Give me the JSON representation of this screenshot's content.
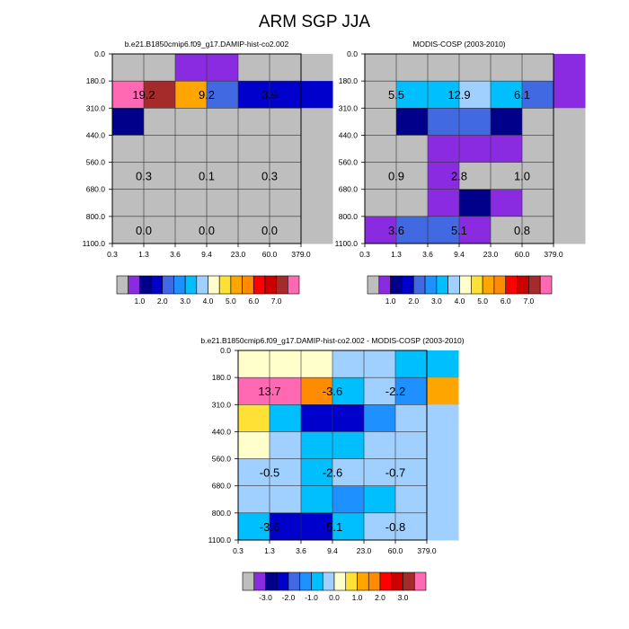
{
  "figure": {
    "title": "ARM SGP JJA"
  },
  "chart_data": [
    {
      "type": "heatmap",
      "title": "b.e21.B1850cmip6.f09_g17.DAMIP-hist-co2.002",
      "x_ticks": [
        "0.3",
        "1.3",
        "3.6",
        "9.4",
        "23.0",
        "60.0",
        "379.0"
      ],
      "y_ticks": [
        "0.0",
        "180.0",
        "310.0",
        "440.0",
        "560.0",
        "680.0",
        "800.0",
        "1100.0"
      ],
      "cell_colors": [
        [
          "#bebebe",
          "#bebebe",
          "#8a2be2",
          "#8a2be2",
          "#bebebe",
          "#bebebe",
          "#bebebe"
        ],
        [
          "#ff69b4",
          "#a52a2a",
          "#ffa500",
          "#4169e1",
          "#0000cd",
          "#0000cd",
          "#0000cd"
        ],
        [
          "#00008b",
          "#bebebe",
          "#bebebe",
          "#bebebe",
          "#bebebe",
          "#bebebe",
          "#bebebe"
        ],
        [
          "#bebebe",
          "#bebebe",
          "#bebebe",
          "#bebebe",
          "#bebebe",
          "#bebebe",
          "#bebebe"
        ],
        [
          "#bebebe",
          "#bebebe",
          "#bebebe",
          "#bebebe",
          "#bebebe",
          "#bebebe",
          "#bebebe"
        ],
        [
          "#bebebe",
          "#bebebe",
          "#bebebe",
          "#bebebe",
          "#bebebe",
          "#bebebe",
          "#bebebe"
        ],
        [
          "#bebebe",
          "#bebebe",
          "#bebebe",
          "#bebebe",
          "#bebebe",
          "#bebebe",
          "#bebebe"
        ]
      ],
      "annotations": [
        {
          "text": "19.2",
          "cx": 1,
          "cy": 1
        },
        {
          "text": "9.2",
          "cx": 3,
          "cy": 1
        },
        {
          "text": "3.9",
          "cx": 5,
          "cy": 1
        },
        {
          "text": "0.3",
          "cx": 1,
          "cy": 4
        },
        {
          "text": "0.1",
          "cx": 3,
          "cy": 4
        },
        {
          "text": "0.3",
          "cx": 5,
          "cy": 4
        },
        {
          "text": "0.0",
          "cx": 1,
          "cy": 6
        },
        {
          "text": "0.0",
          "cx": 3,
          "cy": 6
        },
        {
          "text": "0.0",
          "cx": 5,
          "cy": 6
        }
      ],
      "colorbar": {
        "colors": [
          "#bebebe",
          "#8a2be2",
          "#00008b",
          "#0000cd",
          "#4169e1",
          "#1e90ff",
          "#00bfff",
          "#a0d0ff",
          "#ffffcc",
          "#ffe135",
          "#ffa500",
          "#ff8c00",
          "#ff0000",
          "#cd0000",
          "#a52a2a",
          "#ff69b4"
        ],
        "labels": [
          "1.0",
          "2.0",
          "3.0",
          "4.0",
          "5.0",
          "6.0",
          "7.0"
        ],
        "label_start_boundary": 2,
        "label_step": 2
      }
    },
    {
      "type": "heatmap",
      "title": "MODIS-COSP (2003-2010)",
      "x_ticks": [
        "0.3",
        "1.3",
        "3.6",
        "9.4",
        "23.0",
        "60.0",
        "379.0"
      ],
      "y_ticks": [
        "0.0",
        "180.0",
        "310.0",
        "440.0",
        "560.0",
        "680.0",
        "800.0",
        "1100.0"
      ],
      "cell_colors": [
        [
          "#bebebe",
          "#bebebe",
          "#bebebe",
          "#bebebe",
          "#bebebe",
          "#bebebe",
          "#8a2be2"
        ],
        [
          "#bebebe",
          "#00bfff",
          "#00bfff",
          "#a0d0ff",
          "#00bfff",
          "#4169e1",
          "#8a2be2"
        ],
        [
          "#bebebe",
          "#00008b",
          "#4169e1",
          "#4169e1",
          "#00008b",
          "#bebebe",
          "#bebebe"
        ],
        [
          "#bebebe",
          "#bebebe",
          "#8a2be2",
          "#8a2be2",
          "#8a2be2",
          "#bebebe",
          "#bebebe"
        ],
        [
          "#bebebe",
          "#bebebe",
          "#8a2be2",
          "#bebebe",
          "#bebebe",
          "#bebebe",
          "#bebebe"
        ],
        [
          "#bebebe",
          "#bebebe",
          "#8a2be2",
          "#00008b",
          "#8a2be2",
          "#bebebe",
          "#bebebe"
        ],
        [
          "#8a2be2",
          "#4169e1",
          "#4169e1",
          "#8a2be2",
          "#bebebe",
          "#bebebe",
          "#bebebe"
        ]
      ],
      "annotations": [
        {
          "text": "5.5",
          "cx": 1,
          "cy": 1
        },
        {
          "text": "12.9",
          "cx": 3,
          "cy": 1
        },
        {
          "text": "6.1",
          "cx": 5,
          "cy": 1
        },
        {
          "text": "0.9",
          "cx": 1,
          "cy": 4
        },
        {
          "text": "2.8",
          "cx": 3,
          "cy": 4
        },
        {
          "text": "1.0",
          "cx": 5,
          "cy": 4
        },
        {
          "text": "3.6",
          "cx": 1,
          "cy": 6
        },
        {
          "text": "5.1",
          "cx": 3,
          "cy": 6
        },
        {
          "text": "0.8",
          "cx": 5,
          "cy": 6
        }
      ],
      "colorbar": {
        "colors": [
          "#bebebe",
          "#8a2be2",
          "#00008b",
          "#0000cd",
          "#4169e1",
          "#1e90ff",
          "#00bfff",
          "#a0d0ff",
          "#ffffcc",
          "#ffe135",
          "#ffa500",
          "#ff8c00",
          "#ff0000",
          "#cd0000",
          "#a52a2a",
          "#ff69b4"
        ],
        "labels": [
          "1.0",
          "2.0",
          "3.0",
          "4.0",
          "5.0",
          "6.0",
          "7.0"
        ],
        "label_start_boundary": 2,
        "label_step": 2
      }
    },
    {
      "type": "heatmap",
      "title": "b.e21.B1850cmip6.f09_g17.DAMIP-hist-co2.002 - MODIS-COSP (2003-2010)",
      "x_ticks": [
        "0.3",
        "1.3",
        "3.6",
        "9.4",
        "23.0",
        "60.0",
        "379.0"
      ],
      "y_ticks": [
        "0.0",
        "180.0",
        "310.0",
        "440.0",
        "560.0",
        "680.0",
        "800.0",
        "1100.0"
      ],
      "cell_colors": [
        [
          "#ffffcc",
          "#ffffcc",
          "#ffffcc",
          "#a0d0ff",
          "#a0d0ff",
          "#00bfff",
          "#00bfff"
        ],
        [
          "#ff69b4",
          "#ff69b4",
          "#ff8c00",
          "#00bfff",
          "#a0d0ff",
          "#1e90ff",
          "#ffa500"
        ],
        [
          "#ffe135",
          "#00bfff",
          "#0000cd",
          "#0000cd",
          "#1e90ff",
          "#a0d0ff",
          "#a0d0ff"
        ],
        [
          "#ffffcc",
          "#a0d0ff",
          "#00bfff",
          "#00bfff",
          "#a0d0ff",
          "#a0d0ff",
          "#a0d0ff"
        ],
        [
          "#a0d0ff",
          "#a0d0ff",
          "#00bfff",
          "#a0d0ff",
          "#a0d0ff",
          "#a0d0ff",
          "#a0d0ff"
        ],
        [
          "#a0d0ff",
          "#a0d0ff",
          "#00bfff",
          "#1e90ff",
          "#00bfff",
          "#a0d0ff",
          "#a0d0ff"
        ],
        [
          "#00bfff",
          "#0000cd",
          "#0000cd",
          "#00bfff",
          "#a0d0ff",
          "#a0d0ff",
          "#a0d0ff"
        ]
      ],
      "annotations": [
        {
          "text": "13.7",
          "cx": 1,
          "cy": 1
        },
        {
          "text": "-3.6",
          "cx": 3,
          "cy": 1
        },
        {
          "text": "-2.2",
          "cx": 5,
          "cy": 1
        },
        {
          "text": "-0.5",
          "cx": 1,
          "cy": 4
        },
        {
          "text": "-2.6",
          "cx": 3,
          "cy": 4
        },
        {
          "text": "-0.7",
          "cx": 5,
          "cy": 4
        },
        {
          "text": "-3.6",
          "cx": 1,
          "cy": 6
        },
        {
          "text": "-5.1",
          "cx": 3,
          "cy": 6
        },
        {
          "text": "-0.8",
          "cx": 5,
          "cy": 6
        }
      ],
      "colorbar": {
        "colors": [
          "#bebebe",
          "#8a2be2",
          "#00008b",
          "#0000cd",
          "#4169e1",
          "#1e90ff",
          "#00bfff",
          "#a0d0ff",
          "#ffffcc",
          "#ffe135",
          "#ffa500",
          "#ff8c00",
          "#ff0000",
          "#cd0000",
          "#a52a2a",
          "#ff69b4"
        ],
        "labels": [
          "-3.0",
          "-2.0",
          "-1.0",
          "0.0",
          "1.0",
          "2.0",
          "3.0"
        ],
        "label_start_boundary": 2,
        "label_step": 2
      }
    }
  ]
}
